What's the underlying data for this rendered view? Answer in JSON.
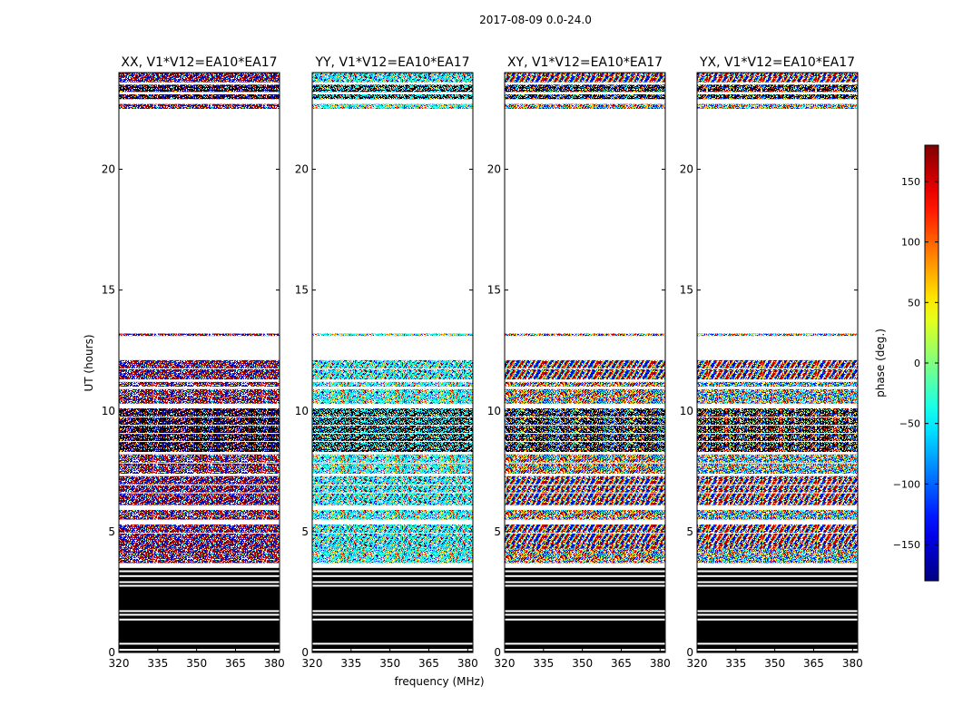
{
  "figure": {
    "suptitle": "2017-08-09 0.0-24.0",
    "xlabel": "frequency (MHz)",
    "ylabel": "UT (hours)",
    "colorbar_label": "phase (deg.)"
  },
  "chart_data": {
    "type": "heatmap",
    "x_range": [
      320,
      382
    ],
    "y_range": [
      0,
      24
    ],
    "x_ticks": [
      320,
      335,
      350,
      365,
      380
    ],
    "x_tick_labels": [
      "320",
      "335",
      "350",
      "365",
      "380"
    ],
    "y_ticks": [
      0,
      5,
      10,
      15,
      20
    ],
    "y_tick_labels": [
      "0",
      "5",
      "10",
      "15",
      "20"
    ],
    "colorbar": {
      "range": [
        -180,
        180
      ],
      "ticks": [
        150,
        100,
        50,
        0,
        -50,
        -100,
        -150
      ],
      "tick_labels": [
        "150",
        "100",
        "50",
        "0",
        "−50",
        "−100",
        "−150"
      ],
      "colormap": "jet"
    },
    "panels": [
      {
        "title": "XX, V1*V12=EA10*EA17",
        "hue_bias": 175
      },
      {
        "title": "YY, V1*V12=EA10*EA17",
        "hue_bias": -40
      },
      {
        "title": "XY, V1*V12=EA10*EA17",
        "hue_bias": null
      },
      {
        "title": "YX, V1*V12=EA10*EA17",
        "hue_bias": null
      }
    ],
    "bands": [
      {
        "y": [
          0.0,
          3.5
        ],
        "kind": "blocked"
      },
      {
        "y": [
          3.7,
          4.3
        ],
        "kind": "noise"
      },
      {
        "y": [
          4.3,
          5.3
        ],
        "kind": "fringe"
      },
      {
        "y": [
          5.5,
          5.9
        ],
        "kind": "noise"
      },
      {
        "y": [
          6.1,
          7.3
        ],
        "kind": "fringe"
      },
      {
        "y": [
          7.4,
          8.2
        ],
        "kind": "noise"
      },
      {
        "y": [
          8.3,
          10.1
        ],
        "kind": "dense"
      },
      {
        "y": [
          10.3,
          10.9
        ],
        "kind": "noise"
      },
      {
        "y": [
          11.0,
          11.2
        ],
        "kind": "noise"
      },
      {
        "y": [
          11.3,
          12.1
        ],
        "kind": "fringe"
      },
      {
        "y": [
          13.1,
          13.2
        ],
        "kind": "noise"
      },
      {
        "y": [
          22.5,
          22.7
        ],
        "kind": "noise"
      },
      {
        "y": [
          22.9,
          23.1
        ],
        "kind": "dense"
      },
      {
        "y": [
          23.2,
          23.5
        ],
        "kind": "dense"
      },
      {
        "y": [
          23.6,
          24.0
        ],
        "kind": "fringe"
      }
    ]
  }
}
